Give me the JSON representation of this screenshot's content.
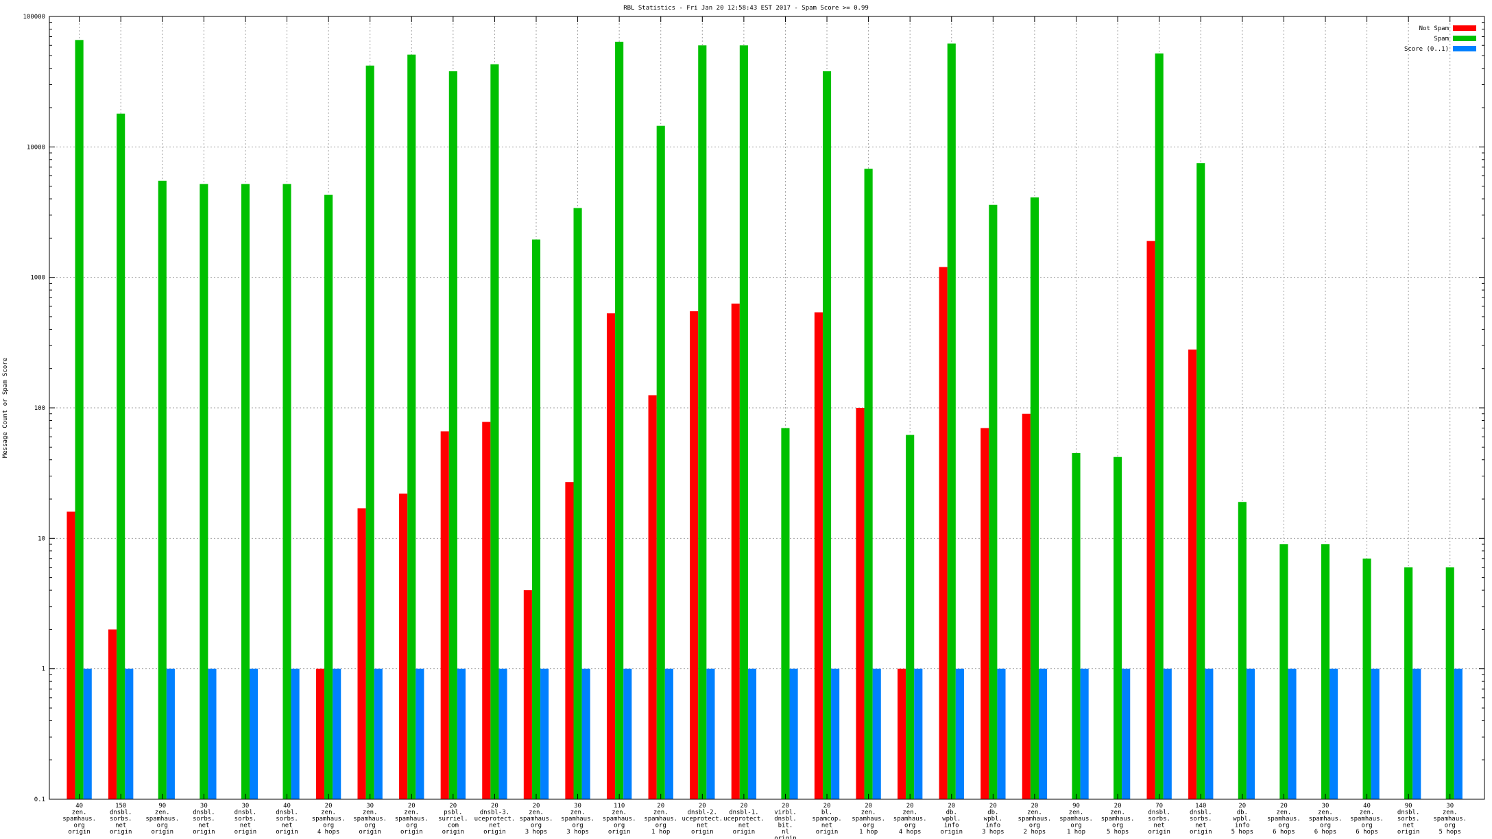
{
  "chart_data": {
    "type": "bar",
    "title": "RBL Statistics - Fri Jan 20 12:58:43 EST 2017 - Spam Score >= 0.99",
    "ylabel": "Message Count or Spam Score",
    "xlabel": "",
    "yscale": "log",
    "ylim": [
      0.1,
      100000
    ],
    "yticks": [
      {
        "value": 0.1,
        "label": "0.1"
      },
      {
        "value": 1,
        "label": "1"
      },
      {
        "value": 10,
        "label": "10"
      },
      {
        "value": 100,
        "label": "100"
      },
      {
        "value": 1000,
        "label": "1000"
      },
      {
        "value": 10000,
        "label": "10000"
      },
      {
        "value": 100000,
        "label": "100000"
      }
    ],
    "grid": true,
    "legend_position": "top-right",
    "categories": [
      [
        "40",
        "zen.",
        "spamhaus.",
        "org",
        "origin"
      ],
      [
        "150",
        "dnsbl.",
        "sorbs.",
        "net",
        "origin"
      ],
      [
        "90",
        "zen.",
        "spamhaus.",
        "org",
        "origin"
      ],
      [
        "30",
        "dnsbl.",
        "sorbs.",
        "net",
        "origin"
      ],
      [
        "30",
        "dnsbl.",
        "sorbs.",
        "net",
        "origin"
      ],
      [
        "40",
        "dnsbl.",
        "sorbs.",
        "net",
        "origin"
      ],
      [
        "20",
        "zen.",
        "spamhaus.",
        "org",
        "4 hops"
      ],
      [
        "30",
        "zen.",
        "spamhaus.",
        "org",
        "origin"
      ],
      [
        "20",
        "zen.",
        "spamhaus.",
        "org",
        "origin"
      ],
      [
        "20",
        "psbl.",
        "surriel.",
        "com",
        "origin"
      ],
      [
        "20",
        "dnsbl-3.",
        "uceprotect.",
        "net",
        "origin"
      ],
      [
        "20",
        "zen.",
        "spamhaus.",
        "org",
        "3 hops"
      ],
      [
        "30",
        "zen.",
        "spamhaus.",
        "org",
        "3 hops"
      ],
      [
        "110",
        "zen.",
        "spamhaus.",
        "org",
        "origin"
      ],
      [
        "20",
        "zen.",
        "spamhaus.",
        "org",
        "1 hop"
      ],
      [
        "20",
        "dnsbl-2.",
        "uceprotect.",
        "net",
        "origin"
      ],
      [
        "20",
        "dnsbl-1.",
        "uceprotect.",
        "net",
        "origin"
      ],
      [
        "20",
        "virbl.",
        "dnsbl.",
        "bit.",
        "nl",
        "origin"
      ],
      [
        "20",
        "bl.",
        "spamcop.",
        "net",
        "origin"
      ],
      [
        "20",
        "zen.",
        "spamhaus.",
        "org",
        "1 hop"
      ],
      [
        "20",
        "zen.",
        "spamhaus.",
        "org",
        "4 hops"
      ],
      [
        "20",
        "db.",
        "wpbl.",
        "info",
        "origin"
      ],
      [
        "20",
        "db.",
        "wpbl.",
        "info",
        "3 hops"
      ],
      [
        "20",
        "zen.",
        "spamhaus.",
        "org",
        "2 hops"
      ],
      [
        "90",
        "zen.",
        "spamhaus.",
        "org",
        "1 hop"
      ],
      [
        "20",
        "zen.",
        "spamhaus.",
        "org",
        "5 hops"
      ],
      [
        "70",
        "dnsbl.",
        "sorbs.",
        "net",
        "origin"
      ],
      [
        "140",
        "dnsbl.",
        "sorbs.",
        "net",
        "origin"
      ],
      [
        "20",
        "db.",
        "wpbl.",
        "info",
        "5 hops"
      ],
      [
        "20",
        "zen.",
        "spamhaus.",
        "org",
        "6 hops"
      ],
      [
        "30",
        "zen.",
        "spamhaus.",
        "org",
        "6 hops"
      ],
      [
        "40",
        "zen.",
        "spamhaus.",
        "org",
        "6 hops"
      ],
      [
        "90",
        "dnsbl.",
        "sorbs.",
        "net",
        "origin"
      ],
      [
        "30",
        "zen.",
        "spamhaus.",
        "org",
        "5 hops"
      ]
    ],
    "series": [
      {
        "name": "Not Spam",
        "color": "#ff0000",
        "values": [
          16,
          2,
          null,
          null,
          null,
          null,
          1,
          17,
          22,
          66,
          78,
          4,
          27,
          530,
          125,
          550,
          630,
          null,
          540,
          100,
          1,
          1200,
          70,
          90,
          null,
          null,
          1900,
          280,
          null,
          null,
          null,
          null,
          null,
          null
        ]
      },
      {
        "name": "Spam",
        "color": "#00c000",
        "values": [
          66000,
          18000,
          5500,
          5200,
          5200,
          5200,
          4300,
          42000,
          51000,
          38000,
          43000,
          1950,
          3400,
          64000,
          14500,
          60000,
          60000,
          70,
          38000,
          6800,
          62,
          62000,
          3600,
          4100,
          45,
          42,
          52000,
          7500,
          19,
          9,
          9,
          7,
          6,
          6
        ]
      },
      {
        "name": "Score (0..1)",
        "color": "#0080ff",
        "values": [
          1,
          1,
          1,
          1,
          1,
          1,
          1,
          1,
          1,
          1,
          1,
          1,
          1,
          1,
          1,
          1,
          1,
          1,
          1,
          1,
          1,
          1,
          1,
          1,
          1,
          1,
          1,
          1,
          1,
          1,
          1,
          1,
          1,
          1
        ]
      }
    ]
  }
}
